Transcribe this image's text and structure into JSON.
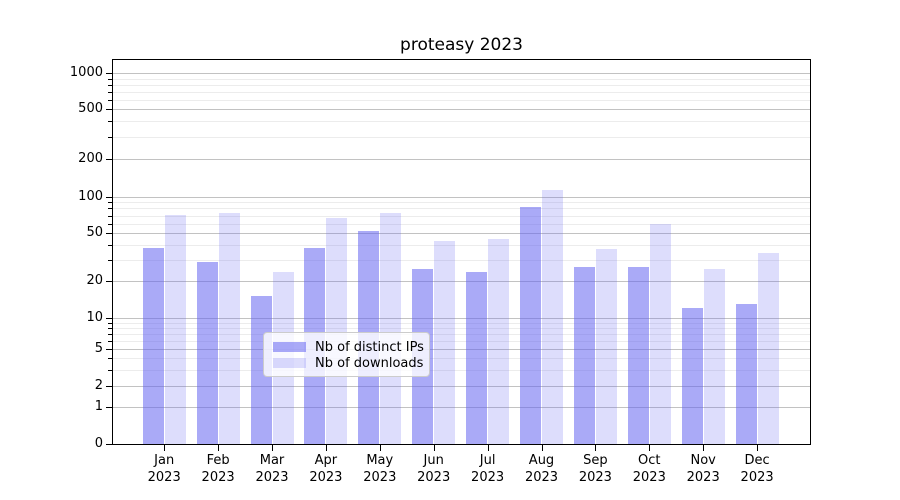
{
  "title": "proteasy 2023",
  "chart_data": {
    "type": "bar",
    "title": "proteasy 2023",
    "categories": [
      "Jan 2023",
      "Feb 2023",
      "Mar 2023",
      "Apr 2023",
      "May 2023",
      "Jun 2023",
      "Jul 2023",
      "Aug 2023",
      "Sep 2023",
      "Oct 2023",
      "Nov 2023",
      "Dec 2023"
    ],
    "series": [
      {
        "name": "Nb of distinct IPs",
        "color": "rgba(100,100,240,0.55)",
        "values": [
          38,
          29,
          15,
          38,
          52,
          25,
          24,
          82,
          26,
          26,
          12,
          13
        ]
      },
      {
        "name": "Nb of downloads",
        "color": "rgba(100,100,240,0.22)",
        "values": [
          71,
          74,
          24,
          67,
          73,
          43,
          45,
          113,
          37,
          60,
          25,
          34
        ]
      }
    ],
    "xlabel": "",
    "ylabel": "",
    "yscale": "symlog",
    "ylim": [
      0,
      1280
    ],
    "grid": true,
    "legend_position": "lower center"
  },
  "axes": {
    "y_ticks": [
      {
        "label": "1000",
        "value": 1000
      },
      {
        "label": "500",
        "value": 500
      },
      {
        "label": "200",
        "value": 200
      },
      {
        "label": "100",
        "value": 100
      },
      {
        "label": "50",
        "value": 50
      },
      {
        "label": "20",
        "value": 20
      },
      {
        "label": "10",
        "value": 10
      },
      {
        "label": "5",
        "value": 5
      },
      {
        "label": "2",
        "value": 2
      },
      {
        "label": "1",
        "value": 1
      },
      {
        "label": "0",
        "value": 0
      }
    ],
    "x_months": [
      "Jan",
      "Feb",
      "Mar",
      "Apr",
      "May",
      "Jun",
      "Jul",
      "Aug",
      "Sep",
      "Oct",
      "Nov",
      "Dec"
    ],
    "x_year": "2023"
  },
  "legend": {
    "items": [
      {
        "label": "Nb of distinct IPs"
      },
      {
        "label": "Nb of downloads"
      }
    ]
  }
}
